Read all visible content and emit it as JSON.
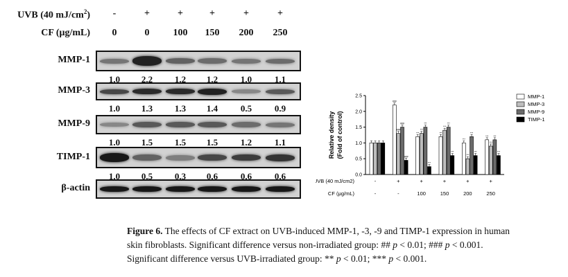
{
  "header": {
    "uvb_label": "UVB (40 mJ/cm",
    "uvb_sup": "2",
    "uvb_close": ")",
    "uvb_values": [
      "-",
      "+",
      "+",
      "+",
      "+",
      "+"
    ],
    "cf_label": "CF (μg/mL)",
    "cf_values": [
      "0",
      "0",
      "100",
      "150",
      "200",
      "250"
    ]
  },
  "blots": [
    {
      "label": "MMP-1",
      "densities": [
        "1.0",
        "2.2",
        "1.2",
        "1.2",
        "1.0",
        "1.1"
      ]
    },
    {
      "label": "MMP-3",
      "densities": [
        "1.0",
        "1.3",
        "1.3",
        "1.4",
        "0.5",
        "0.9"
      ]
    },
    {
      "label": "MMP-9",
      "densities": [
        "1.0",
        "1.5",
        "1.5",
        "1.5",
        "1.2",
        "1.1"
      ]
    },
    {
      "label": "TIMP-1",
      "densities": [
        "1.0",
        "0.5",
        "0.3",
        "0.6",
        "0.6",
        "0.6"
      ]
    },
    {
      "label": "β-actin",
      "densities": []
    }
  ],
  "chart_data": {
    "type": "bar",
    "categories": [
      "1",
      "2",
      "3",
      "4",
      "5",
      "6"
    ],
    "ylabel": "Relative density",
    "ylabel2": "(Fold of control)",
    "ylim": [
      0,
      2.5
    ],
    "yticks": [
      "0.0",
      "0.5",
      "1.0",
      "1.5",
      "2.0",
      "2.5"
    ],
    "grid": false,
    "legend_position": "top-right",
    "series": [
      {
        "name": "MMP-1",
        "values": [
          1.0,
          2.2,
          1.2,
          1.2,
          1.0,
          1.1
        ],
        "color": "#ffffff"
      },
      {
        "name": "MMP-3",
        "values": [
          1.0,
          1.3,
          1.3,
          1.4,
          0.5,
          0.9
        ],
        "color": "#bdbdbd"
      },
      {
        "name": "MMP-9",
        "values": [
          1.0,
          1.5,
          1.5,
          1.5,
          1.2,
          1.1
        ],
        "color": "#6b6b6b"
      },
      {
        "name": "TIMP-1",
        "values": [
          1.0,
          0.45,
          0.25,
          0.6,
          0.6,
          0.6
        ],
        "color": "#000000"
      }
    ],
    "significance": [
      [
        "",
        "",
        "",
        ""
      ],
      [
        "###",
        "###",
        "###",
        "###"
      ],
      [
        "***",
        "***",
        "***",
        "***"
      ],
      [
        "***",
        "***",
        "***",
        "***"
      ],
      [
        "***",
        "***",
        "***",
        "***"
      ],
      [
        "***",
        "***",
        "***",
        "***"
      ]
    ],
    "xrow_uvb_label": "UVB (40 mJ/cm",
    "xrow_uvb_sup": "2",
    "xrow_uvb_close": ")",
    "xrow_uvb": [
      "-",
      "+",
      "+",
      "+",
      "+",
      "+"
    ],
    "xrow_cf_label": "CF (μg/mL)",
    "xrow_cf": [
      "-",
      "-",
      "100",
      "150",
      "200",
      "250"
    ]
  },
  "caption": {
    "figure": "Figure 6.",
    "line1": " The effects of CF extract on UVB-induced MMP-1, -3, -9 and TIMP-1 expression in human",
    "line2a": "skin fibroblasts.  Significant difference versus non-irradiated group:  ## ",
    "p": "p",
    "line2b": " < 0.01; ### ",
    "line2c": " < 0.001.",
    "line3a": "Significant difference versus UVB-irradiated group: ** ",
    "line3b": " < 0.01; *** ",
    "line3c": " < 0.001."
  }
}
